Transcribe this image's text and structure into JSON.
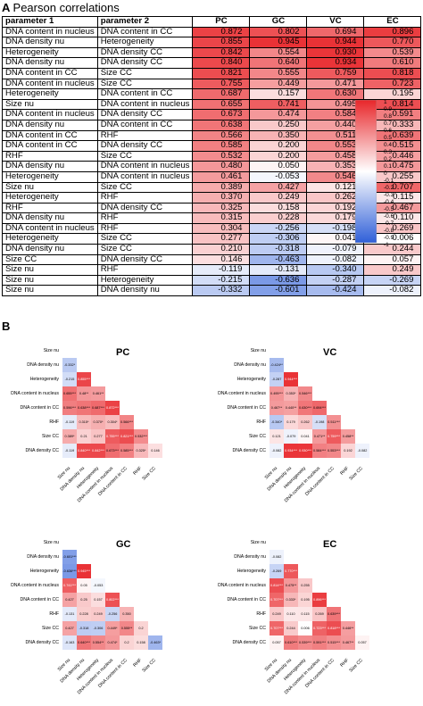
{
  "panel_a": {
    "label": "A",
    "title": "Pearson correlations",
    "headers": [
      "parameter 1",
      "parameter 2",
      "PC",
      "GC",
      "VC",
      "EC"
    ],
    "rows": [
      [
        "DNA content in nucleus",
        "DNA content in CC",
        "0.872",
        "0.802",
        "0.694",
        "0.896"
      ],
      [
        "DNA density nu",
        "Heterogeneity",
        "0.855",
        "0.945",
        "0.944",
        "0.770"
      ],
      [
        "Heterogeneity",
        "DNA density CC",
        "0.842",
        "0.554",
        "0.930",
        "0.539"
      ],
      [
        "DNA density nu",
        "DNA density CC",
        "0.840",
        "0.640",
        "0.934",
        "0.610"
      ],
      [
        "DNA content in CC",
        "Size CC",
        "0.821",
        "0.555",
        "0.759",
        "0.818"
      ],
      [
        "DNA content in nucleus",
        "Size CC",
        "0.755",
        "0.449",
        "0.471",
        "0.723"
      ],
      [
        "Heterogeneity",
        "DNA content in CC",
        "0.687",
        "0.157",
        "0.630",
        "0.195"
      ],
      [
        "Size nu",
        "DNA content in nucleus",
        "0.655",
        "0.741",
        "0.495",
        "0.814"
      ],
      [
        "DNA content in nucleus",
        "DNA density CC",
        "0.673",
        "0.474",
        "0.584",
        "0.591"
      ],
      [
        "DNA density nu",
        "DNA content in CC",
        "0.638",
        "0.250",
        "0.440",
        "0.333"
      ],
      [
        "DNA content in CC",
        "RHF",
        "0.566",
        "0.350",
        "0.511",
        "0.639"
      ],
      [
        "DNA content in CC",
        "DNA density CC",
        "0.585",
        "0.200",
        "0.553",
        "0.515"
      ],
      [
        "RHF",
        "Size CC",
        "0.532",
        "0.200",
        "0.458",
        "0.446"
      ],
      [
        "DNA density nu",
        "DNA content in nucleus",
        "0.480",
        "0.050",
        "0.353",
        "0.475"
      ],
      [
        "Heterogeneity",
        "DNA content in nucleus",
        "0.461",
        "-0.053",
        "0.546",
        "0.255"
      ],
      [
        "Size nu",
        "Size CC",
        "0.389",
        "0.427",
        "0.121",
        "0.707"
      ],
      [
        "Heterogeneity",
        "RHF",
        "0.370",
        "0.249",
        "0.262",
        "0.115"
      ],
      [
        "RHF",
        "DNA density CC",
        "0.325",
        "0.158",
        "0.192",
        "0.467"
      ],
      [
        "DNA density nu",
        "RHF",
        "0.315",
        "0.228",
        "0.179",
        "0.110"
      ],
      [
        "DNA content in nucleus",
        "RHF",
        "0.304",
        "-0.256",
        "-0.198",
        "0.269"
      ],
      [
        "Heterogeneity",
        "Size CC",
        "0.277",
        "-0.306",
        "0.041",
        "0.006"
      ],
      [
        "DNA density nu",
        "Size CC",
        "0.210",
        "-0.318",
        "-0.079",
        "0.244"
      ],
      [
        "Size CC",
        "DNA density CC",
        "0.146",
        "-0.463",
        "-0.082",
        "0.057"
      ],
      [
        "Size nu",
        "RHF",
        "-0.119",
        "-0.131",
        "-0.340",
        "0.249"
      ],
      [
        "Size nu",
        "Heterogeneity",
        "-0.215",
        "-0.636",
        "-0.287",
        "-0.269"
      ],
      [
        "Size nu",
        "DNA density nu",
        "-0.332",
        "-0.601",
        "-0.424",
        "-0.082"
      ]
    ],
    "colorbar_ticks": [
      "1",
      "0.9",
      "0.8",
      "0.7",
      "0.6",
      "0.5",
      "0.4",
      "0.3",
      "0.2",
      "0.1",
      "0",
      "-0.1",
      "-0.2",
      "-0.3",
      "-0.4",
      "-0.5",
      "-0.6",
      "-0.7",
      "-0.8",
      "-0.9",
      "-1"
    ],
    "sig_legend_pos": [
      "p<0.001",
      "p<0.01",
      "p<0.05"
    ],
    "sig_legend_neg": [
      "p<0.05",
      "p<0.01",
      "p<0.001"
    ],
    "colors": {
      "pos_strong": "#e8262a",
      "pos_mid": "#f07a7a",
      "pos_weak": "#f9c6c6",
      "neg_weak": "#c6d3f5",
      "neg_mid": "#7f9ae8",
      "neg_strong": "#2f5fd8",
      "zero": "#ffffff"
    }
  },
  "panel_b": {
    "label": "B",
    "variables": [
      "Size nu",
      "DNA density nu",
      "Heterogeneity",
      "DNA content in nucleus",
      "DNA content in CC",
      "RHF",
      "Size CC",
      "DNA density CC"
    ],
    "matrices": [
      {
        "title": "PC",
        "values": [
          [
            "-0.332*"
          ],
          [
            "-0.215",
            "0.855***"
          ],
          [
            "0.655***",
            "0.48**",
            "0.461**"
          ],
          [
            "0.596***",
            "0.638***",
            "0.687***",
            "0.872***"
          ],
          [
            "-0.119",
            "0.315*",
            "0.370*",
            "0.304*",
            "0.566***"
          ],
          [
            "0.389*",
            "0.21",
            "0.277",
            "0.755***",
            "0.821***",
            "0.532***"
          ],
          [
            "-0.119",
            "0.840***",
            "0.842***",
            "0.673***",
            "0.585***",
            "0.325*",
            "0.146"
          ]
        ]
      },
      {
        "title": "VC",
        "values": [
          [
            "-0.424**"
          ],
          [
            "-0.287",
            "0.944***"
          ],
          [
            "0.495***",
            "0.353*",
            "0.546***"
          ],
          [
            "0.467**",
            "0.440**",
            "0.630***",
            "0.694***"
          ],
          [
            "-0.340*",
            "0.179",
            "0.262",
            "-0.198",
            "0.511***"
          ],
          [
            "0.121",
            "-0.079",
            "0.041",
            "0.471**",
            "0.759***",
            "0.458**"
          ],
          [
            "-0.082",
            "0.934***",
            "0.930***",
            "0.584***",
            "0.553***",
            "0.192",
            "-0.082"
          ]
        ]
      },
      {
        "title": "GC",
        "values": [
          [
            "-0.601***"
          ],
          [
            "-0.636***",
            "0.945***"
          ],
          [
            "0.741***",
            "0.05",
            "-0.053"
          ],
          [
            "0.427",
            "0.25",
            "0.157",
            "0.802***"
          ],
          [
            "-0.131",
            "0.228",
            "0.249",
            "-0.256",
            "0.350"
          ],
          [
            "0.427",
            "-0.318",
            "-0.306",
            "0.449*",
            "0.555**",
            "0.2"
          ],
          [
            "-0.163",
            "0.640***",
            "0.554**",
            "0.474*",
            "0.2",
            "0.158",
            "-0.463*"
          ]
        ]
      },
      {
        "title": "EC",
        "values": [
          [
            "-0.082"
          ],
          [
            "-0.269",
            "0.770***"
          ],
          [
            "0.814***",
            "0.475**",
            "0.255"
          ],
          [
            "0.707***",
            "0.333*",
            "0.195",
            "0.896***"
          ],
          [
            "0.249",
            "0.110",
            "0.115",
            "0.269",
            "0.639***"
          ],
          [
            "0.707***",
            "0.244",
            "0.006",
            "0.723***",
            "0.818***",
            "0.446**"
          ],
          [
            "0.057",
            "0.610***",
            "0.539***",
            "0.591***",
            "0.515***",
            "0.467**",
            "0.057"
          ]
        ]
      }
    ]
  }
}
